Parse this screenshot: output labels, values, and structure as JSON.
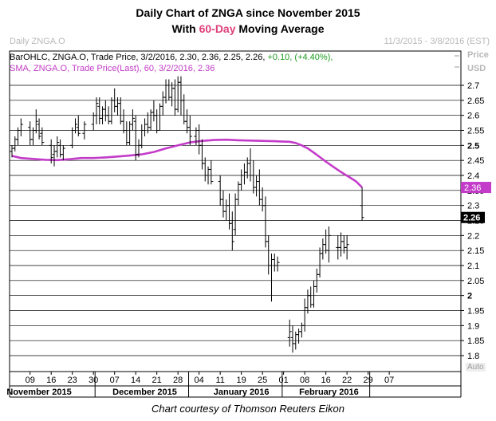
{
  "header": {
    "title_line1": "Daily Chart of ZNGA since November 2015",
    "title_line2_pre": "With ",
    "title_line2_accent": "60-Day",
    "title_line2_post": " Moving Average",
    "chart_name": "Daily ZNGA.O",
    "date_range": "11/3/2015 - 3/8/2016 (EST)",
    "unit_price": "Price",
    "unit_usd": "USD"
  },
  "legend": {
    "bar_line": "BarOHLC, ZNGA.O, Trade Price, 3/2/2016, 2.30, 2.36, 2.25, 2.26,",
    "bar_change": "+0.10, (+4.40%),",
    "sma_line": "SMA, ZNGA.O, Trade Price(Last),  60, 3/2/2016, 2.36"
  },
  "footer": {
    "credit": "Chart courtesy of Thomson Reuters Eikon",
    "auto_label": "Auto"
  },
  "colors": {
    "sma": "#c33cc9",
    "bar": "#000000",
    "accent": "#e0407a",
    "grid": "#000000"
  },
  "chart_data": {
    "type": "line",
    "title": "Daily Chart of ZNGA since November 2015 With 60-Day Moving Average",
    "ylabel": "Price USD",
    "ylim": [
      1.78,
      2.76
    ],
    "yticks": [
      "2.7",
      "2.65",
      "2.6",
      "2.55",
      "2.5",
      "2.45",
      "2.4",
      "2.35",
      "2.3",
      "2.25",
      "2.2",
      "2.15",
      "2.1",
      "2.05",
      "2",
      "1.95",
      "1.9",
      "1.85",
      "1.8"
    ],
    "bold_ticks": [
      "2.5",
      "2"
    ],
    "xticks": [
      {
        "day": 9,
        "label": "09"
      },
      {
        "day": 16,
        "label": "16"
      },
      {
        "day": 23,
        "label": "23"
      },
      {
        "day": 30,
        "label": "30"
      },
      {
        "day": 37,
        "label": "07"
      },
      {
        "day": 44,
        "label": "14"
      },
      {
        "day": 51,
        "label": "21"
      },
      {
        "day": 58,
        "label": "28"
      },
      {
        "day": 65,
        "label": "04"
      },
      {
        "day": 72,
        "label": "11"
      },
      {
        "day": 79,
        "label": "19"
      },
      {
        "day": 86,
        "label": "25"
      },
      {
        "day": 93,
        "label": "01"
      },
      {
        "day": 100,
        "label": "08"
      },
      {
        "day": 107,
        "label": "16"
      },
      {
        "day": 114,
        "label": "22"
      },
      {
        "day": 121,
        "label": "29"
      },
      {
        "day": 128,
        "label": "07"
      }
    ],
    "months": [
      {
        "label": "November 2015",
        "day": 12
      },
      {
        "label": "December 2015",
        "day": 47
      },
      {
        "label": "January 2016",
        "day": 79
      },
      {
        "label": "February 2016",
        "day": 108
      }
    ],
    "month_separators": [
      30,
      61,
      92,
      121
    ],
    "day_range": [
      3,
      130
    ],
    "last_price_label": "2.26",
    "sma_label": "2.36",
    "ohlc": [
      [
        3,
        2.48,
        2.5,
        2.46,
        2.49
      ],
      [
        4,
        2.49,
        2.53,
        2.48,
        2.52
      ],
      [
        5,
        2.52,
        2.56,
        2.5,
        2.55
      ],
      [
        6,
        2.55,
        2.59,
        2.53,
        2.57
      ],
      [
        9,
        2.56,
        2.58,
        2.5,
        2.52
      ],
      [
        10,
        2.52,
        2.56,
        2.5,
        2.55
      ],
      [
        11,
        2.55,
        2.62,
        2.54,
        2.58
      ],
      [
        12,
        2.57,
        2.59,
        2.52,
        2.53
      ],
      [
        13,
        2.54,
        2.56,
        2.5,
        2.51
      ],
      [
        16,
        2.5,
        2.52,
        2.44,
        2.46
      ],
      [
        17,
        2.47,
        2.5,
        2.43,
        2.48
      ],
      [
        18,
        2.48,
        2.53,
        2.46,
        2.51
      ],
      [
        19,
        2.5,
        2.52,
        2.46,
        2.47
      ],
      [
        20,
        2.47,
        2.5,
        2.45,
        2.49
      ],
      [
        23,
        2.5,
        2.56,
        2.49,
        2.55
      ],
      [
        24,
        2.55,
        2.59,
        2.54,
        2.57
      ],
      [
        25,
        2.56,
        2.6,
        2.53,
        2.54
      ],
      [
        27,
        2.54,
        2.58,
        2.52,
        2.57
      ],
      [
        30,
        2.57,
        2.61,
        2.55,
        2.6
      ],
      [
        31,
        2.6,
        2.66,
        2.57,
        2.64
      ],
      [
        32,
        2.63,
        2.66,
        2.57,
        2.59
      ],
      [
        33,
        2.59,
        2.63,
        2.57,
        2.62
      ],
      [
        34,
        2.62,
        2.65,
        2.58,
        2.6
      ],
      [
        35,
        2.6,
        2.63,
        2.57,
        2.58
      ],
      [
        36,
        2.58,
        2.66,
        2.57,
        2.65
      ],
      [
        37,
        2.65,
        2.69,
        2.61,
        2.63
      ],
      [
        38,
        2.63,
        2.66,
        2.6,
        2.64
      ],
      [
        39,
        2.64,
        2.66,
        2.57,
        2.58
      ],
      [
        40,
        2.58,
        2.62,
        2.54,
        2.55
      ],
      [
        41,
        2.55,
        2.58,
        2.5,
        2.51
      ],
      [
        42,
        2.51,
        2.58,
        2.5,
        2.57
      ],
      [
        43,
        2.57,
        2.62,
        2.55,
        2.59
      ],
      [
        44,
        2.58,
        2.6,
        2.45,
        2.47
      ],
      [
        45,
        2.47,
        2.52,
        2.46,
        2.5
      ],
      [
        46,
        2.5,
        2.57,
        2.49,
        2.55
      ],
      [
        47,
        2.55,
        2.59,
        2.53,
        2.57
      ],
      [
        48,
        2.57,
        2.61,
        2.54,
        2.56
      ],
      [
        49,
        2.56,
        2.62,
        2.55,
        2.61
      ],
      [
        50,
        2.61,
        2.65,
        2.58,
        2.6
      ],
      [
        51,
        2.6,
        2.62,
        2.54,
        2.55
      ],
      [
        52,
        2.55,
        2.64,
        2.55,
        2.63
      ],
      [
        53,
        2.63,
        2.68,
        2.6,
        2.66
      ],
      [
        54,
        2.66,
        2.72,
        2.64,
        2.7
      ],
      [
        55,
        2.7,
        2.72,
        2.65,
        2.66
      ],
      [
        56,
        2.66,
        2.71,
        2.63,
        2.69
      ],
      [
        57,
        2.69,
        2.72,
        2.6,
        2.62
      ],
      [
        58,
        2.62,
        2.73,
        2.61,
        2.71
      ],
      [
        59,
        2.71,
        2.73,
        2.6,
        2.65
      ],
      [
        60,
        2.65,
        2.67,
        2.57,
        2.58
      ],
      [
        61,
        2.58,
        2.62,
        2.54,
        2.56
      ],
      [
        62,
        2.56,
        2.6,
        2.5,
        2.53
      ],
      [
        64,
        2.53,
        2.56,
        2.5,
        2.55
      ],
      [
        65,
        2.55,
        2.57,
        2.47,
        2.5
      ],
      [
        66,
        2.5,
        2.52,
        2.42,
        2.44
      ],
      [
        67,
        2.44,
        2.46,
        2.38,
        2.4
      ],
      [
        68,
        2.4,
        2.43,
        2.37,
        2.42
      ],
      [
        69,
        2.42,
        2.45,
        2.37,
        2.38
      ],
      [
        72,
        2.38,
        2.4,
        2.3,
        2.32
      ],
      [
        73,
        2.32,
        2.35,
        2.26,
        2.28
      ],
      [
        74,
        2.28,
        2.32,
        2.25,
        2.3
      ],
      [
        75,
        2.3,
        2.34,
        2.22,
        2.24
      ],
      [
        76,
        2.24,
        2.28,
        2.15,
        2.18
      ],
      [
        77,
        2.22,
        2.34,
        2.2,
        2.32
      ],
      [
        78,
        2.32,
        2.38,
        2.3,
        2.37
      ],
      [
        79,
        2.37,
        2.42,
        2.35,
        2.4
      ],
      [
        80,
        2.4,
        2.44,
        2.37,
        2.41
      ],
      [
        81,
        2.41,
        2.46,
        2.39,
        2.44
      ],
      [
        82,
        2.44,
        2.49,
        2.38,
        2.4
      ],
      [
        83,
        2.4,
        2.45,
        2.34,
        2.36
      ],
      [
        84,
        2.36,
        2.4,
        2.33,
        2.38
      ],
      [
        85,
        2.38,
        2.42,
        2.3,
        2.32
      ],
      [
        86,
        2.32,
        2.36,
        2.28,
        2.3
      ],
      [
        87,
        2.3,
        2.33,
        2.16,
        2.18
      ],
      [
        88,
        2.18,
        2.2,
        2.07,
        2.1
      ],
      [
        89,
        2.1,
        2.14,
        1.98,
        2.12
      ],
      [
        90,
        2.12,
        2.14,
        2.08,
        2.1
      ],
      [
        91,
        2.1,
        2.13,
        2.08,
        2.11
      ],
      [
        95,
        1.86,
        1.92,
        1.83,
        1.88
      ],
      [
        96,
        1.86,
        1.9,
        1.81,
        1.84
      ],
      [
        97,
        1.84,
        1.88,
        1.82,
        1.87
      ],
      [
        98,
        1.87,
        1.89,
        1.84,
        1.88
      ],
      [
        99,
        1.88,
        1.91,
        1.86,
        1.9
      ],
      [
        100,
        1.9,
        1.99,
        1.88,
        1.96
      ],
      [
        101,
        1.96,
        2.02,
        1.94,
        2.0
      ],
      [
        102,
        2.0,
        2.03,
        1.96,
        1.97
      ],
      [
        103,
        1.97,
        2.05,
        1.96,
        2.03
      ],
      [
        104,
        2.03,
        2.09,
        2.01,
        2.07
      ],
      [
        105,
        2.07,
        2.16,
        2.06,
        2.14
      ],
      [
        106,
        2.14,
        2.19,
        2.12,
        2.17
      ],
      [
        107,
        2.17,
        2.22,
        2.14,
        2.15
      ],
      [
        108,
        2.15,
        2.23,
        2.11,
        2.2
      ],
      [
        111,
        2.16,
        2.2,
        2.12,
        2.16
      ],
      [
        112,
        2.16,
        2.21,
        2.13,
        2.18
      ],
      [
        113,
        2.18,
        2.2,
        2.14,
        2.16
      ],
      [
        114,
        2.16,
        2.2,
        2.12,
        2.17
      ],
      [
        119,
        2.3,
        2.36,
        2.25,
        2.26
      ]
    ],
    "sma": [
      [
        3,
        2.465
      ],
      [
        6,
        2.458
      ],
      [
        10,
        2.455
      ],
      [
        14,
        2.452
      ],
      [
        18,
        2.451
      ],
      [
        22,
        2.454
      ],
      [
        26,
        2.458
      ],
      [
        30,
        2.458
      ],
      [
        34,
        2.46
      ],
      [
        38,
        2.463
      ],
      [
        42,
        2.466
      ],
      [
        46,
        2.47
      ],
      [
        50,
        2.478
      ],
      [
        54,
        2.49
      ],
      [
        58,
        2.5
      ],
      [
        62,
        2.51
      ],
      [
        66,
        2.515
      ],
      [
        70,
        2.518
      ],
      [
        74,
        2.519
      ],
      [
        78,
        2.517
      ],
      [
        82,
        2.516
      ],
      [
        86,
        2.515
      ],
      [
        90,
        2.514
      ],
      [
        92,
        2.513
      ],
      [
        95,
        2.512
      ],
      [
        97,
        2.508
      ],
      [
        99,
        2.5
      ],
      [
        101,
        2.49
      ],
      [
        103,
        2.476
      ],
      [
        105,
        2.461
      ],
      [
        107,
        2.446
      ],
      [
        109,
        2.432
      ],
      [
        111,
        2.418
      ],
      [
        113,
        2.405
      ],
      [
        115,
        2.393
      ],
      [
        117,
        2.38
      ],
      [
        119,
        2.36
      ]
    ]
  }
}
